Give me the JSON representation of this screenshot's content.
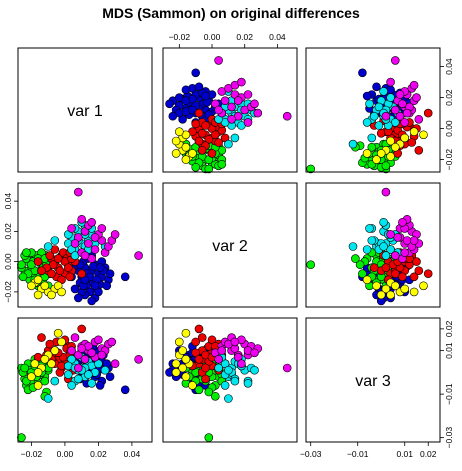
{
  "chart_data": {
    "type": "scatter-matrix",
    "title": "MDS (Sammon) on original differences",
    "variables": [
      "var 1",
      "var 2",
      "var 3"
    ],
    "grid": false,
    "legend": "none",
    "axes": {
      "v1": {
        "lim": [
          -0.028,
          0.052
        ],
        "ticks": [
          -0.02,
          0.0,
          0.02,
          0.04
        ],
        "tick_labels": [
          "−0.02",
          "0.00",
          "0.02",
          "0.04"
        ]
      },
      "v2": {
        "lim": [
          -0.03,
          0.052
        ],
        "ticks": [
          -0.02,
          0.0,
          0.02,
          0.04
        ],
        "tick_labels": [
          "−0.02",
          "0.00",
          "0.02",
          "0.04"
        ]
      },
      "v3": {
        "lim": [
          -0.032,
          0.025
        ],
        "ticks": [
          -0.03,
          -0.01,
          0.01,
          0.02
        ],
        "tick_labels": [
          "−0.03",
          "−0.01",
          "0.01",
          "0.02"
        ]
      }
    },
    "tick_placement": {
      "top": [
        "v2",
        null,
        null
      ],
      "right": [
        null,
        "v2",
        "v3"
      ],
      "bottom": [
        null,
        null,
        "v3"
      ],
      "left": [
        null,
        "v2",
        null
      ]
    },
    "extra_axis_labels": {
      "top_col2": {
        "ticks": [
          -0.02,
          0.0,
          0.02,
          0.04
        ],
        "tick_labels": [
          "−0.02",
          "0.00",
          "0.02",
          "0.04"
        ]
      },
      "right_row1": {
        "ticks": [
          -0.02,
          0.0,
          0.02,
          0.04
        ],
        "tick_labels": [
          "−0.02",
          "0.00",
          "0.02",
          "0.04"
        ]
      },
      "bottom_col1": {
        "ticks": [
          -0.02,
          0.0,
          0.02,
          0.04
        ],
        "tick_labels": [
          "−0.02",
          "0.00",
          "0.02",
          "0.04"
        ]
      },
      "left_row2": {
        "ticks": [
          -0.02,
          0.0,
          0.02,
          0.04
        ],
        "tick_labels": [
          "−0.02",
          "0.00",
          "0.02",
          "0.04"
        ]
      }
    },
    "groups": [
      {
        "color": "#0000cd",
        "points": [
          [
            0.012,
            -0.004,
            0.002
          ],
          [
            0.016,
            -0.006,
            0.004
          ],
          [
            0.01,
            -0.01,
            0.0
          ],
          [
            0.018,
            -0.002,
            -0.002
          ],
          [
            0.014,
            -0.012,
            0.006
          ],
          [
            0.02,
            -0.008,
            0.001
          ],
          [
            0.008,
            -0.006,
            0.003
          ],
          [
            0.022,
            -0.01,
            -0.004
          ],
          [
            0.013,
            -0.016,
            0.005
          ],
          [
            0.017,
            -0.014,
            0.008
          ],
          [
            0.011,
            0.0,
            0.002
          ],
          [
            0.019,
            -0.018,
            -0.001
          ],
          [
            0.024,
            -0.004,
            0.003
          ],
          [
            0.015,
            -0.02,
            0.0
          ],
          [
            0.009,
            -0.014,
            -0.003
          ],
          [
            0.021,
            -0.015,
            0.006
          ],
          [
            0.006,
            -0.018,
            0.004
          ],
          [
            0.026,
            -0.012,
            0.002
          ],
          [
            0.014,
            0.002,
            0.009
          ],
          [
            0.012,
            -0.022,
            -0.002
          ],
          [
            0.018,
            -0.024,
            0.004
          ],
          [
            0.016,
            0.004,
            0.001
          ],
          [
            0.004,
            -0.01,
            0.007
          ],
          [
            0.022,
            0.0,
            0.005
          ],
          [
            0.01,
            -0.02,
            0.01
          ],
          [
            0.02,
            -0.02,
            0.002
          ],
          [
            0.013,
            -0.008,
            -0.005
          ],
          [
            0.017,
            -0.003,
            0.011
          ],
          [
            0.008,
            -0.024,
            0.001
          ],
          [
            0.023,
            -0.006,
            0.008
          ],
          [
            0.015,
            -0.01,
            0.003
          ],
          [
            0.011,
            -0.016,
            0.006
          ],
          [
            0.027,
            -0.008,
            -0.002
          ],
          [
            0.019,
            -0.012,
            0.009
          ],
          [
            0.005,
            -0.004,
            0.002
          ],
          [
            0.025,
            -0.016,
            0.004
          ],
          [
            0.009,
            -0.002,
            0.006
          ],
          [
            0.016,
            -0.026,
            0.0
          ],
          [
            0.021,
            -0.004,
            -0.006
          ],
          [
            0.036,
            -0.01,
            -0.008
          ],
          [
            0.012,
            -0.012,
            0.012
          ],
          [
            0.018,
            -0.016,
            0.007
          ]
        ]
      },
      {
        "color": "#00ee00",
        "points": [
          [
            -0.014,
            -0.002,
            0.0
          ],
          [
            -0.018,
            0.002,
            0.003
          ],
          [
            -0.012,
            -0.006,
            -0.002
          ],
          [
            -0.016,
            -0.008,
            0.002
          ],
          [
            -0.02,
            -0.004,
            -0.004
          ],
          [
            -0.01,
            0.0,
            0.001
          ],
          [
            -0.022,
            0.0,
            0.004
          ],
          [
            -0.015,
            -0.012,
            -0.001
          ],
          [
            -0.011,
            0.004,
            0.002
          ],
          [
            -0.019,
            -0.01,
            0.0
          ],
          [
            -0.024,
            -0.006,
            -0.003
          ],
          [
            -0.013,
            -0.014,
            0.003
          ],
          [
            -0.017,
            0.004,
            -0.002
          ],
          [
            -0.021,
            -0.012,
            0.001
          ],
          [
            -0.009,
            -0.008,
            0.005
          ],
          [
            -0.023,
            0.002,
            -0.006
          ],
          [
            -0.014,
            0.006,
            0.0
          ],
          [
            -0.026,
            -0.004,
            0.002
          ],
          [
            -0.016,
            -0.016,
            -0.005
          ],
          [
            -0.012,
            -0.01,
            -0.004
          ],
          [
            -0.018,
            -0.006,
            0.006
          ],
          [
            -0.02,
            0.006,
            -0.001
          ],
          [
            -0.01,
            -0.016,
            0.002
          ],
          [
            -0.028,
            0.0,
            -0.002
          ],
          [
            -0.015,
            0.0,
            0.004
          ],
          [
            -0.022,
            -0.008,
            -0.008
          ],
          [
            -0.013,
            -0.004,
            0.006
          ],
          [
            -0.019,
            0.0,
            -0.007
          ],
          [
            -0.017,
            -0.014,
            -0.002
          ],
          [
            -0.025,
            -0.01,
            0.0
          ],
          [
            -0.011,
            -0.002,
            -0.009
          ],
          [
            -0.016,
            0.002,
            0.001
          ],
          [
            -0.014,
            -0.006,
            0.003
          ],
          [
            -0.02,
            -0.002,
            0.0
          ],
          [
            -0.018,
            -0.012,
            0.003
          ],
          [
            -0.012,
            0.002,
            -0.011
          ],
          [
            -0.024,
            0.004,
            0.002
          ],
          [
            -0.026,
            -0.002,
            -0.03
          ],
          [
            -0.023,
            0.006,
            -0.004
          ]
        ]
      },
      {
        "color": "#ee0000",
        "points": [
          [
            -0.004,
            -0.004,
            0.006
          ],
          [
            -0.006,
            0.0,
            0.01
          ],
          [
            0.0,
            -0.008,
            0.004
          ],
          [
            -0.008,
            0.002,
            0.008
          ],
          [
            0.002,
            -0.002,
            0.012
          ],
          [
            -0.002,
            0.004,
            0.002
          ],
          [
            -0.01,
            -0.006,
            0.01
          ],
          [
            0.004,
            -0.006,
            0.006
          ],
          [
            -0.005,
            -0.01,
            0.014
          ],
          [
            -0.001,
            0.006,
            0.007
          ],
          [
            0.006,
            0.0,
            0.003
          ],
          [
            -0.007,
            -0.002,
            0.005
          ],
          [
            0.001,
            0.002,
            0.011
          ],
          [
            -0.003,
            -0.006,
            0.0
          ],
          [
            -0.009,
            0.004,
            0.013
          ],
          [
            0.003,
            -0.01,
            0.009
          ],
          [
            0.005,
            0.004,
            0.001
          ],
          [
            -0.011,
            -0.004,
            0.008
          ],
          [
            0.0,
            0.0,
            0.015
          ],
          [
            -0.006,
            0.008,
            0.004
          ],
          [
            0.002,
            -0.004,
            -0.003
          ],
          [
            -0.004,
            0.002,
            0.009
          ],
          [
            -0.008,
            -0.008,
            0.006
          ],
          [
            0.004,
            0.002,
            0.012
          ],
          [
            -0.002,
            -0.012,
            0.003
          ],
          [
            -0.028,
            -0.004,
            0.002
          ],
          [
            -0.014,
            -0.006,
            0.016
          ],
          [
            0.01,
            -0.008,
            0.02
          ],
          [
            -0.016,
            0.0,
            0.007
          ],
          [
            0.003,
            0.006,
            0.008
          ]
        ]
      },
      {
        "color": "#00e5ee",
        "points": [
          [
            0.006,
            0.008,
            0.004
          ],
          [
            0.01,
            0.012,
            0.002
          ],
          [
            0.004,
            0.016,
            0.006
          ],
          [
            0.012,
            0.01,
            -0.002
          ],
          [
            0.008,
            0.02,
            0.001
          ],
          [
            0.014,
            0.014,
            0.005
          ],
          [
            0.002,
            0.012,
            -0.001
          ],
          [
            0.016,
            0.018,
            0.003
          ],
          [
            0.006,
            0.022,
            -0.004
          ],
          [
            0.01,
            0.006,
            0.007
          ],
          [
            0.018,
            0.012,
            0.0
          ],
          [
            0.004,
            0.008,
            -0.006
          ],
          [
            0.012,
            0.024,
            0.002
          ],
          [
            0.008,
            0.014,
            -0.003
          ],
          [
            0.02,
            0.016,
            0.004
          ],
          [
            0.014,
            0.008,
            -0.001
          ],
          [
            0.002,
            0.018,
            0.003
          ],
          [
            0.016,
            0.022,
            -0.005
          ],
          [
            0.01,
            0.026,
            0.001
          ],
          [
            -0.01,
            0.01,
            -0.012
          ],
          [
            -0.006,
            0.014,
            -0.004
          ],
          [
            0.024,
            0.01,
            0.001
          ],
          [
            0.006,
            0.004,
            0.002
          ],
          [
            0.012,
            0.018,
            0.006
          ]
        ]
      },
      {
        "color": "#ee00ee",
        "points": [
          [
            0.01,
            0.006,
            0.012
          ],
          [
            0.014,
            0.012,
            0.01
          ],
          [
            0.018,
            0.008,
            0.014
          ],
          [
            0.008,
            0.016,
            0.008
          ],
          [
            0.022,
            0.014,
            0.011
          ],
          [
            0.012,
            0.02,
            0.013
          ],
          [
            0.016,
            0.002,
            0.009
          ],
          [
            0.02,
            0.018,
            0.015
          ],
          [
            0.024,
            0.006,
            0.01
          ],
          [
            0.006,
            0.012,
            0.016
          ],
          [
            0.014,
            0.024,
            0.012
          ],
          [
            0.026,
            0.01,
            0.013
          ],
          [
            0.018,
            0.016,
            0.007
          ],
          [
            0.01,
            0.028,
            0.011
          ],
          [
            0.022,
            0.022,
            0.008
          ],
          [
            0.028,
            0.014,
            0.014
          ],
          [
            0.012,
            0.004,
            0.006
          ],
          [
            0.044,
            0.004,
            0.006
          ],
          [
            0.008,
            0.046,
            0.002
          ],
          [
            0.004,
            0.022,
            0.01
          ],
          [
            0.03,
            0.018,
            0.004
          ],
          [
            0.016,
            0.026,
            0.009
          ]
        ]
      },
      {
        "color": "#ffff00",
        "points": [
          [
            -0.018,
            -0.014,
            0.004
          ],
          [
            -0.014,
            -0.018,
            0.002
          ],
          [
            -0.01,
            -0.02,
            0.008
          ],
          [
            -0.016,
            -0.022,
            0.0
          ],
          [
            -0.012,
            -0.016,
            0.006
          ],
          [
            -0.006,
            -0.018,
            0.01
          ],
          [
            -0.02,
            -0.016,
            -0.002
          ],
          [
            -0.008,
            -0.022,
            0.004
          ],
          [
            -0.004,
            -0.016,
            0.018
          ],
          [
            -0.002,
            -0.02,
            0.014
          ],
          [
            -0.016,
            -0.012,
            -0.006
          ]
        ]
      }
    ]
  }
}
